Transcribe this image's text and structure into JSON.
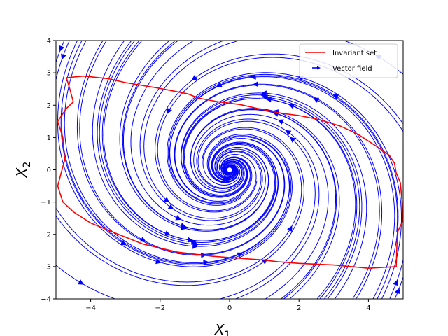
{
  "chart_data": {
    "type": "streamplot",
    "title": "",
    "xlabel": {
      "base": "X",
      "sub": "1"
    },
    "ylabel": {
      "base": "X",
      "sub": "2"
    },
    "xlim": [
      -5,
      5
    ],
    "ylim": [
      -4,
      4
    ],
    "xticks": [
      -4,
      -2,
      0,
      2,
      4
    ],
    "yticks": [
      -4,
      -3,
      -2,
      -1,
      0,
      1,
      2,
      3,
      4
    ],
    "grid": false,
    "legend_position": "top-right",
    "legend": [
      {
        "label": "Invariant set",
        "kind": "line",
        "color": "#ff0000"
      },
      {
        "label": "Vector field",
        "kind": "arrow",
        "color": "#0000ff"
      }
    ],
    "series": [
      {
        "name": "Invariant set",
        "color": "#ff0000",
        "points": [
          [
            -4.7,
            2.85
          ],
          [
            -4.2,
            2.9
          ],
          [
            -3.5,
            2.82
          ],
          [
            -3.0,
            2.7
          ],
          [
            -2.0,
            2.52
          ],
          [
            -1.2,
            2.35
          ],
          [
            -0.9,
            2.22
          ],
          [
            -0.3,
            2.1
          ],
          [
            0.3,
            2.02
          ],
          [
            0.8,
            1.9
          ],
          [
            1.5,
            1.75
          ],
          [
            2.0,
            1.68
          ],
          [
            2.6,
            1.55
          ],
          [
            3.2,
            1.35
          ],
          [
            3.7,
            1.1
          ],
          [
            4.2,
            0.75
          ],
          [
            4.6,
            0.45
          ],
          [
            4.75,
            0.2
          ],
          [
            4.8,
            -0.1
          ],
          [
            4.92,
            -0.4
          ],
          [
            4.97,
            -1.0
          ],
          [
            4.98,
            -1.6
          ],
          [
            4.85,
            -1.9
          ],
          [
            4.82,
            -2.3
          ],
          [
            4.8,
            -3.0
          ],
          [
            4.0,
            -3.05
          ],
          [
            3.0,
            -2.95
          ],
          [
            2.0,
            -2.9
          ],
          [
            1.4,
            -2.85
          ],
          [
            1.0,
            -2.8
          ],
          [
            0.0,
            -2.72
          ],
          [
            -0.5,
            -2.68
          ],
          [
            -1.5,
            -2.55
          ],
          [
            -2.5,
            -2.3
          ],
          [
            -3.2,
            -2.0
          ],
          [
            -4.0,
            -1.65
          ],
          [
            -4.5,
            -1.3
          ],
          [
            -4.8,
            -1.0
          ],
          [
            -4.95,
            -0.5
          ],
          [
            -4.85,
            -0.1
          ],
          [
            -4.75,
            0.3
          ],
          [
            -4.8,
            1.0
          ],
          [
            -4.95,
            1.5
          ],
          [
            -4.7,
            1.9
          ],
          [
            -4.5,
            2.1
          ],
          [
            -4.6,
            2.5
          ],
          [
            -4.7,
            2.85
          ]
        ]
      }
    ],
    "vector_field_color": "#0000ff"
  }
}
